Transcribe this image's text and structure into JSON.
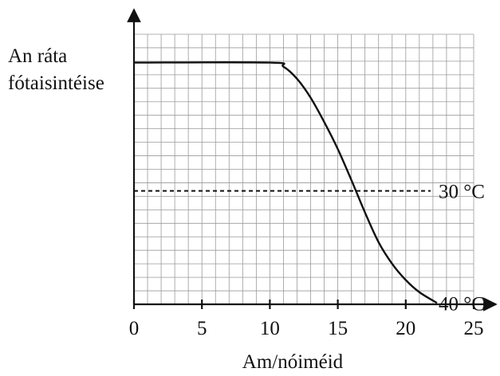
{
  "chart_data": {
    "type": "line",
    "title": "",
    "xlabel": "Am/nóiméid",
    "ylabel_lines": [
      "An ráta",
      "fótaisintéise"
    ],
    "xlim": [
      0,
      25
    ],
    "ylim": [
      0,
      10
    ],
    "xticks": [
      0,
      5,
      10,
      15,
      20,
      25
    ],
    "x_tick_labels": [
      "0",
      "5",
      "10",
      "15",
      "20",
      "25"
    ],
    "y_tick_labels": [],
    "grid": true,
    "x_grid_step": 1,
    "y_grid_step": 0.5,
    "series": [
      {
        "name": "",
        "x": [
          0,
          10,
          11,
          12,
          13,
          14,
          15,
          16,
          17,
          18,
          19,
          20,
          21,
          22.3
        ],
        "y": [
          8.95,
          8.95,
          8.8,
          8.35,
          7.65,
          6.75,
          5.75,
          4.6,
          3.4,
          2.3,
          1.5,
          0.9,
          0.45,
          0.05
        ]
      }
    ],
    "reference_lines": [
      {
        "y": 4.2,
        "x_start": 0,
        "x_end": 22.3
      }
    ],
    "annotations": [
      {
        "text": "30 °C",
        "x": 22.3,
        "y": 4.2
      },
      {
        "text": "40 °C",
        "x": 22.3,
        "y": 0.05
      }
    ]
  }
}
